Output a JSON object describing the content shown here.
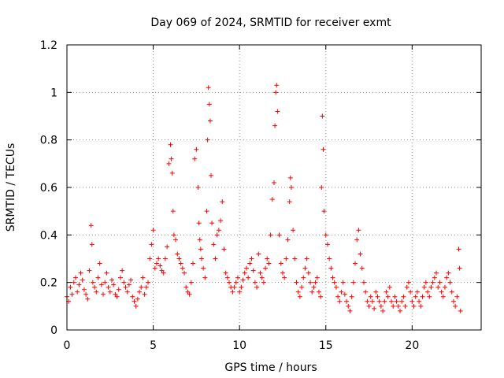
{
  "chart_data": {
    "type": "scatter",
    "title": "Day 069 of 2024, SRMTID for receiver exmt",
    "xlabel": "GPS time / hours",
    "ylabel": "SRMTID / TECUs",
    "xlim": [
      0,
      24
    ],
    "ylim": [
      0,
      1.2
    ],
    "xticks": [
      0,
      5,
      10,
      15,
      20
    ],
    "xtick_labels": [
      "0",
      "5",
      "10",
      "15",
      "20"
    ],
    "yticks": [
      0,
      0.2,
      0.4,
      0.6,
      0.8,
      1.0,
      1.2
    ],
    "ytick_labels": [
      "0",
      "0.2",
      "0.4",
      "0.6",
      "0.8",
      "1",
      "1.2"
    ],
    "grid": true,
    "marker": "+",
    "color": "#ff0000",
    "series": [
      {
        "name": "SRMTID",
        "x": [
          0.0,
          0.1,
          0.2,
          0.3,
          0.4,
          0.5,
          0.6,
          0.7,
          0.8,
          0.9,
          1.0,
          1.1,
          1.2,
          1.3,
          1.4,
          1.45,
          1.5,
          1.6,
          1.7,
          1.8,
          1.9,
          2.0,
          2.1,
          2.2,
          2.3,
          2.4,
          2.5,
          2.6,
          2.7,
          2.8,
          2.9,
          3.0,
          3.1,
          3.2,
          3.3,
          3.4,
          3.5,
          3.6,
          3.7,
          3.8,
          3.9,
          4.0,
          4.1,
          4.2,
          4.3,
          4.4,
          4.5,
          4.6,
          4.7,
          4.8,
          4.9,
          5.0,
          5.1,
          5.2,
          5.3,
          5.4,
          5.5,
          5.6,
          5.7,
          5.8,
          5.9,
          6.0,
          6.05,
          6.1,
          6.15,
          6.2,
          6.3,
          6.4,
          6.5,
          6.6,
          6.7,
          6.8,
          6.9,
          7.0,
          7.1,
          7.2,
          7.3,
          7.4,
          7.5,
          7.6,
          7.65,
          7.7,
          7.75,
          7.8,
          7.9,
          8.0,
          8.1,
          8.15,
          8.2,
          8.25,
          8.3,
          8.35,
          8.4,
          8.5,
          8.6,
          8.7,
          8.8,
          8.9,
          9.0,
          9.1,
          9.2,
          9.3,
          9.4,
          9.5,
          9.6,
          9.7,
          9.8,
          9.9,
          10.0,
          10.1,
          10.2,
          10.3,
          10.4,
          10.5,
          10.6,
          10.7,
          10.8,
          10.9,
          11.0,
          11.1,
          11.2,
          11.3,
          11.4,
          11.5,
          11.6,
          11.7,
          11.8,
          11.9,
          12.0,
          12.05,
          12.1,
          12.15,
          12.2,
          12.3,
          12.4,
          12.5,
          12.6,
          12.7,
          12.8,
          12.9,
          12.95,
          13.0,
          13.1,
          13.2,
          13.3,
          13.4,
          13.5,
          13.6,
          13.7,
          13.8,
          13.9,
          14.0,
          14.1,
          14.2,
          14.3,
          14.4,
          14.5,
          14.6,
          14.7,
          14.75,
          14.8,
          14.85,
          14.9,
          15.0,
          15.1,
          15.2,
          15.3,
          15.4,
          15.5,
          15.6,
          15.7,
          15.8,
          15.9,
          16.0,
          16.1,
          16.2,
          16.3,
          16.4,
          16.5,
          16.6,
          16.7,
          16.8,
          16.9,
          17.0,
          17.1,
          17.2,
          17.3,
          17.4,
          17.5,
          17.6,
          17.7,
          17.8,
          17.9,
          18.0,
          18.1,
          18.2,
          18.3,
          18.4,
          18.5,
          18.6,
          18.7,
          18.8,
          18.9,
          19.0,
          19.1,
          19.2,
          19.3,
          19.4,
          19.5,
          19.6,
          19.7,
          19.8,
          19.9,
          20.0,
          20.1,
          20.2,
          20.3,
          20.4,
          20.5,
          20.6,
          20.7,
          20.8,
          20.9,
          21.0,
          21.1,
          21.2,
          21.3,
          21.4,
          21.5,
          21.6,
          21.7,
          21.8,
          21.9,
          22.0,
          22.1,
          22.2,
          22.3,
          22.4,
          22.5,
          22.6,
          22.7,
          22.75,
          22.8
        ],
        "y": [
          0.14,
          0.12,
          0.18,
          0.15,
          0.2,
          0.22,
          0.16,
          0.19,
          0.24,
          0.21,
          0.17,
          0.15,
          0.13,
          0.25,
          0.44,
          0.36,
          0.2,
          0.18,
          0.16,
          0.22,
          0.28,
          0.19,
          0.15,
          0.2,
          0.24,
          0.18,
          0.16,
          0.21,
          0.19,
          0.15,
          0.14,
          0.17,
          0.22,
          0.25,
          0.2,
          0.18,
          0.16,
          0.19,
          0.21,
          0.14,
          0.12,
          0.1,
          0.13,
          0.16,
          0.18,
          0.22,
          0.15,
          0.18,
          0.2,
          0.3,
          0.36,
          0.42,
          0.26,
          0.28,
          0.3,
          0.27,
          0.25,
          0.24,
          0.3,
          0.35,
          0.7,
          0.78,
          0.72,
          0.66,
          0.5,
          0.4,
          0.38,
          0.32,
          0.3,
          0.28,
          0.26,
          0.24,
          0.18,
          0.16,
          0.15,
          0.2,
          0.28,
          0.72,
          0.76,
          0.6,
          0.45,
          0.38,
          0.34,
          0.3,
          0.26,
          0.22,
          0.5,
          0.8,
          1.02,
          0.95,
          0.88,
          0.65,
          0.45,
          0.36,
          0.3,
          0.4,
          0.42,
          0.46,
          0.54,
          0.34,
          0.24,
          0.22,
          0.2,
          0.18,
          0.16,
          0.18,
          0.2,
          0.22,
          0.16,
          0.18,
          0.21,
          0.24,
          0.26,
          0.22,
          0.28,
          0.3,
          0.25,
          0.2,
          0.18,
          0.32,
          0.24,
          0.22,
          0.2,
          0.26,
          0.3,
          0.28,
          0.4,
          0.55,
          0.62,
          0.86,
          1.0,
          1.03,
          0.92,
          0.4,
          0.28,
          0.24,
          0.22,
          0.3,
          0.38,
          0.54,
          0.64,
          0.6,
          0.42,
          0.3,
          0.2,
          0.16,
          0.14,
          0.18,
          0.22,
          0.26,
          0.3,
          0.24,
          0.2,
          0.16,
          0.18,
          0.2,
          0.22,
          0.16,
          0.14,
          0.6,
          0.9,
          0.76,
          0.5,
          0.4,
          0.36,
          0.3,
          0.26,
          0.22,
          0.2,
          0.18,
          0.14,
          0.12,
          0.16,
          0.2,
          0.15,
          0.12,
          0.1,
          0.08,
          0.14,
          0.2,
          0.28,
          0.38,
          0.42,
          0.32,
          0.26,
          0.2,
          0.16,
          0.12,
          0.1,
          0.14,
          0.12,
          0.09,
          0.16,
          0.14,
          0.12,
          0.1,
          0.08,
          0.12,
          0.16,
          0.14,
          0.18,
          0.12,
          0.1,
          0.14,
          0.12,
          0.1,
          0.08,
          0.12,
          0.14,
          0.1,
          0.18,
          0.2,
          0.16,
          0.12,
          0.1,
          0.14,
          0.16,
          0.12,
          0.1,
          0.14,
          0.18,
          0.2,
          0.16,
          0.14,
          0.18,
          0.2,
          0.22,
          0.24,
          0.18,
          0.2,
          0.16,
          0.14,
          0.18,
          0.22,
          0.24,
          0.2,
          0.16,
          0.12,
          0.1,
          0.14,
          0.34,
          0.26,
          0.08
        ]
      }
    ]
  }
}
